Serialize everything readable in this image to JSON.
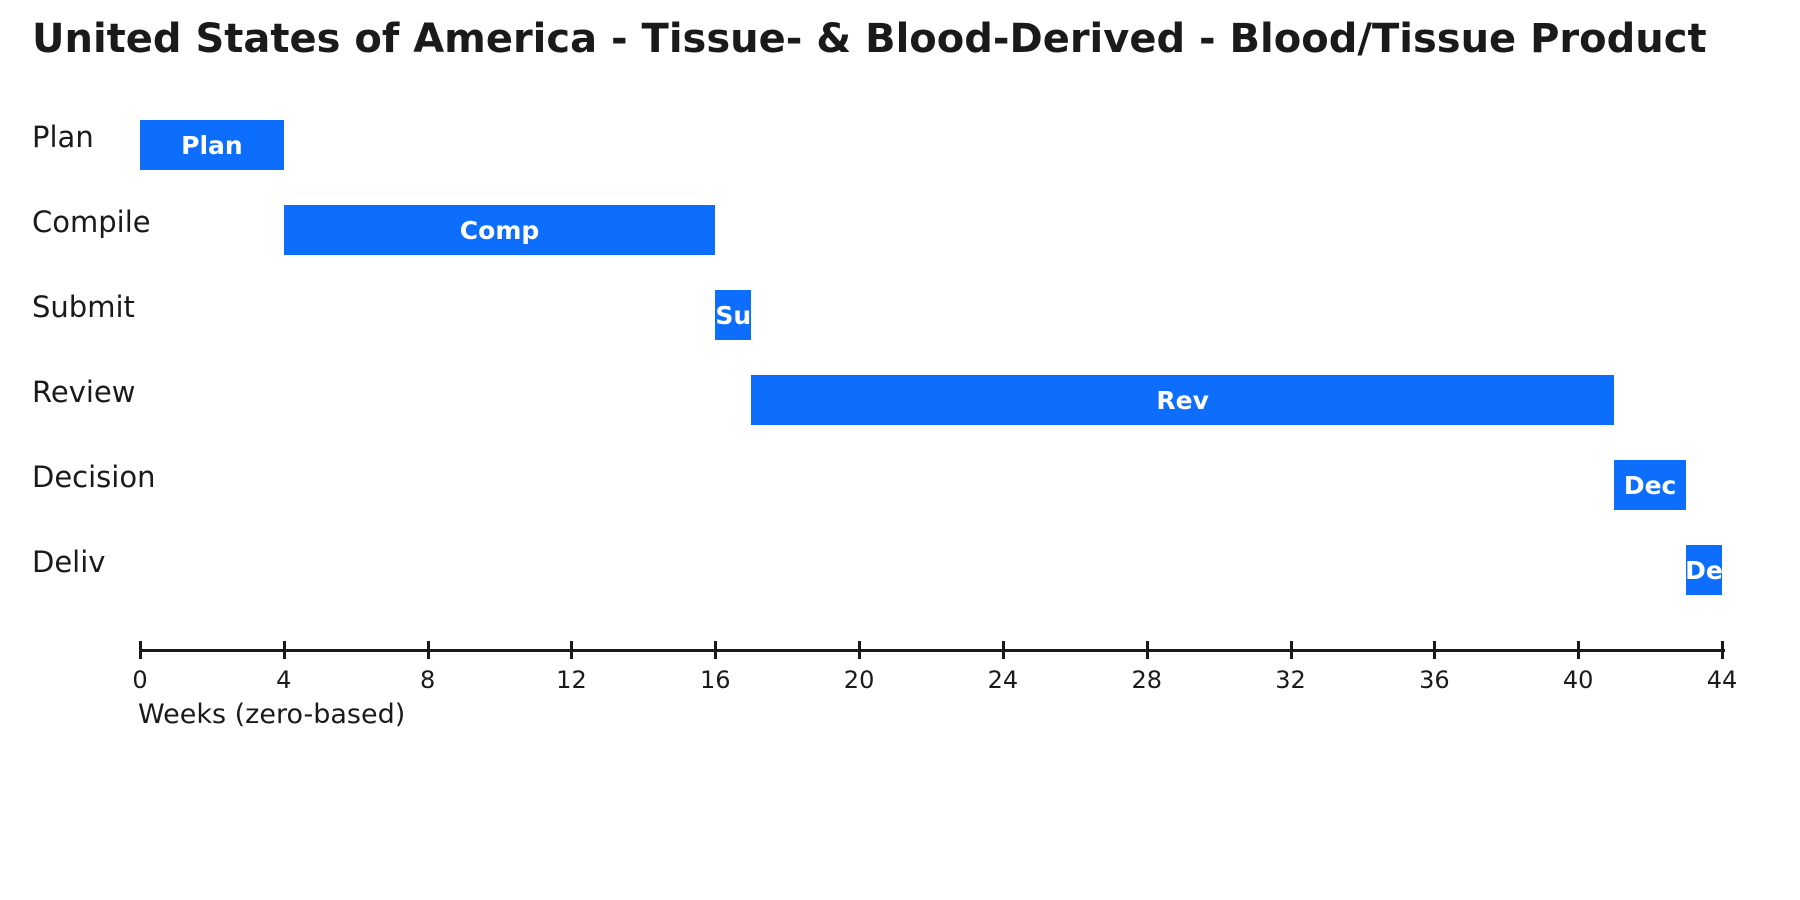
{
  "title": "United States of America - Tissue- & Blood-Derived - Blood/Tissue Product",
  "colors": {
    "bar": "#0d6efd",
    "bar_label": "#ffffff",
    "text": "#1a1a1a",
    "background": "#ffffff"
  },
  "chart_data": {
    "type": "gantt",
    "title": "United States of America - Tissue- & Blood-Derived - Blood/Tissue Product",
    "xlabel": "Weeks (zero-based)",
    "xlim": [
      0,
      44
    ],
    "xticks": [
      0,
      4,
      8,
      12,
      16,
      20,
      24,
      28,
      32,
      36,
      40,
      44
    ],
    "grid": false,
    "bar_color": "#0d6efd",
    "tasks": [
      {
        "row_label": "Plan",
        "bar_label": "Plan",
        "start": 0,
        "end": 4
      },
      {
        "row_label": "Compile",
        "bar_label": "Comp",
        "start": 4,
        "end": 16
      },
      {
        "row_label": "Submit",
        "bar_label": "Su",
        "start": 16,
        "end": 17
      },
      {
        "row_label": "Review",
        "bar_label": "Rev",
        "start": 17,
        "end": 41
      },
      {
        "row_label": "Decision",
        "bar_label": "Dec",
        "start": 41,
        "end": 43
      },
      {
        "row_label": "Deliv",
        "bar_label": "De",
        "start": 43,
        "end": 44
      }
    ]
  }
}
